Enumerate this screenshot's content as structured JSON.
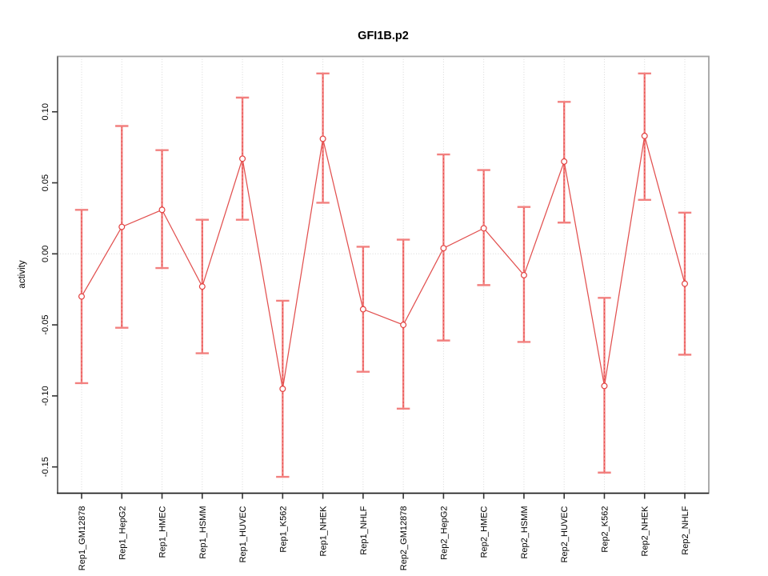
{
  "window": {
    "background": "#ffffff"
  },
  "chart_data": {
    "type": "line",
    "title": "GFI1B.p2",
    "xlabel": "",
    "ylabel": "activity",
    "legend": "none",
    "grid": "dotted vertical gridline at every category; dotted horizontal line at y=0",
    "categories": [
      "Rep1_GM12878",
      "Rep1_HepG2",
      "Rep1_HMEC",
      "Rep1_HSMM",
      "Rep1_HUVEC",
      "Rep1_K562",
      "Rep1_NHEK",
      "Rep1_NHLF",
      "Rep2_GM12878",
      "Rep2_HepG2",
      "Rep2_HMEC",
      "Rep2_HSMM",
      "Rep2_HUVEC",
      "Rep2_K562",
      "Rep2_NHEK",
      "Rep2_NHLF"
    ],
    "series": [
      {
        "name": "activity",
        "values": [
          -0.03,
          0.019,
          0.031,
          -0.023,
          0.067,
          -0.095,
          0.081,
          -0.039,
          -0.05,
          0.004,
          0.018,
          -0.015,
          0.065,
          -0.093,
          0.083,
          -0.021
        ]
      }
    ],
    "error_low": [
      -0.091,
      -0.052,
      -0.01,
      -0.07,
      0.024,
      -0.157,
      0.036,
      -0.083,
      -0.109,
      -0.061,
      -0.022,
      -0.062,
      0.022,
      -0.154,
      0.038,
      -0.071
    ],
    "error_high": [
      0.031,
      0.09,
      0.073,
      0.024,
      0.11,
      -0.033,
      0.127,
      0.005,
      0.01,
      0.07,
      0.059,
      0.033,
      0.107,
      -0.031,
      0.127,
      0.029
    ],
    "yticks": [
      -0.15,
      -0.1,
      -0.05,
      0.0,
      0.05,
      0.1
    ],
    "ytick_labels": [
      "-0.15",
      "-0.10",
      "-0.05",
      "0.00",
      "0.05",
      "0.10"
    ],
    "ylim": [
      -0.1685,
      0.139
    ],
    "marker": "open-circle",
    "colors": {
      "line": "#e2504f",
      "marker_stroke": "#e2403f",
      "error_bar": "#f2807f",
      "error_dash": "#e2403f",
      "grid": "#d8d8d8",
      "box_border": "#a3a3a3",
      "left_axis": "#6b6b6b",
      "bottom_axis": "#1a1a1a",
      "tick": "#333333",
      "text": "#000000",
      "background": "#ffffff"
    }
  }
}
